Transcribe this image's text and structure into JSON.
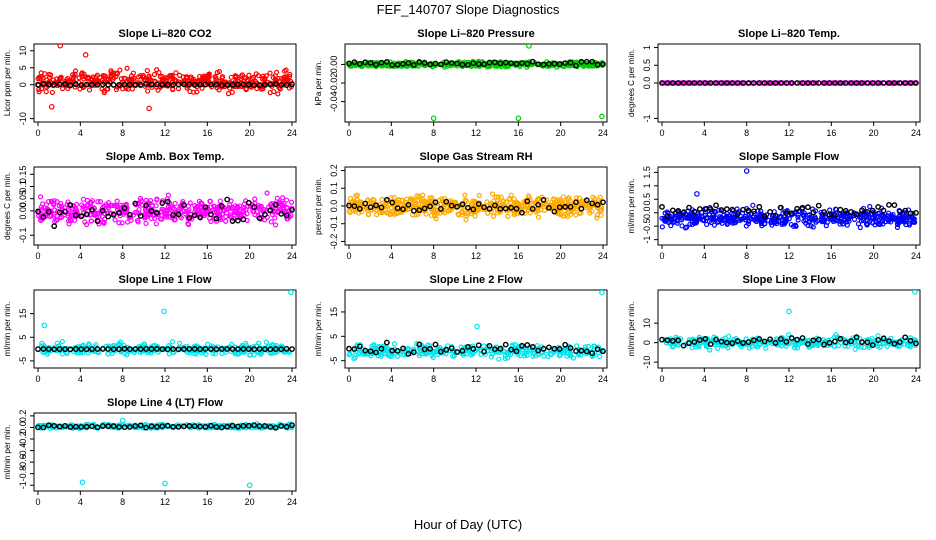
{
  "figure": {
    "title": "FEF_140707  Slope Diagnostics",
    "xlabel": "Hour of Day (UTC)"
  },
  "chart_data": [
    {
      "type": "scatter",
      "title": "Slope Li–820 CO2",
      "ylabel": "Licor ppm per min.",
      "xlim": [
        0,
        24
      ],
      "xticks": [
        0,
        4,
        8,
        12,
        16,
        20,
        24
      ],
      "ylim": [
        -11,
        12
      ],
      "yticks": [
        -10,
        0,
        5,
        10
      ],
      "series": [
        {
          "color": "#ff0000",
          "center": 1,
          "spread": 10,
          "n": 420
        },
        {
          "color": "#000000",
          "center": 0,
          "spread": 0.6,
          "n": 48
        }
      ],
      "outliers": [
        [
          2.1,
          11.5
        ],
        [
          4.5,
          8.8
        ],
        [
          1.3,
          -6.5
        ],
        [
          10.5,
          -7.0
        ]
      ]
    },
    {
      "type": "scatter",
      "title": "Slope Li–820 Pressure",
      "ylabel": "kPa per min.",
      "xlim": [
        0,
        24
      ],
      "xticks": [
        0,
        4,
        8,
        12,
        16,
        20,
        24
      ],
      "ylim": [
        -0.062,
        0.022
      ],
      "yticks": [
        -0.04,
        -0.02,
        0.0
      ],
      "series": [
        {
          "color": "#00cc00",
          "center": 0.0,
          "spread": 0.009,
          "n": 460
        },
        {
          "color": "#000000",
          "center": 0.001,
          "spread": 0.008,
          "n": 48
        }
      ],
      "outliers": [
        [
          8.0,
          -0.058
        ],
        [
          16.0,
          -0.058
        ],
        [
          23.9,
          -0.056
        ],
        [
          17.0,
          0.02
        ]
      ]
    },
    {
      "type": "scatter",
      "title": "Slope Li–820 Temp.",
      "ylabel": "degrees C per min.",
      "xlim": [
        0,
        24
      ],
      "xticks": [
        0,
        4,
        8,
        12,
        16,
        20,
        24
      ],
      "ylim": [
        -1.1,
        1.1
      ],
      "yticks": [
        -1.0,
        0.0,
        0.5,
        1.0
      ],
      "series": [
        {
          "color": "#ff00ff",
          "center": 0,
          "spread": 0.0,
          "n": 200
        },
        {
          "color": "#000000",
          "center": 0,
          "spread": 0.0,
          "n": 48
        }
      ],
      "outliers": []
    },
    {
      "type": "scatter",
      "title": "Slope Amb. Box Temp.",
      "ylabel": "degrees C per min.",
      "xlim": [
        0,
        24
      ],
      "xticks": [
        0,
        4,
        8,
        12,
        16,
        20,
        24
      ],
      "ylim": [
        -0.14,
        0.18
      ],
      "yticks": [
        -0.1,
        0.0,
        0.05,
        0.1,
        0.15
      ],
      "series": [
        {
          "color": "#ff00ff",
          "center": 0.0,
          "spread": 0.17,
          "n": 460
        },
        {
          "color": "#000000",
          "center": 0.0,
          "spread": 0.16,
          "n": 48
        }
      ],
      "outliers": []
    },
    {
      "type": "scatter",
      "title": "Slope Gas Stream RH",
      "ylabel": "percent per min.",
      "xlim": [
        0,
        24
      ],
      "xticks": [
        0,
        4,
        8,
        12,
        16,
        20,
        24
      ],
      "ylim": [
        -0.22,
        0.22
      ],
      "yticks": [
        -0.2,
        -0.1,
        0.0,
        0.1,
        0.2
      ],
      "series": [
        {
          "color": "#ffaa00",
          "center": 0.0,
          "spread": 0.2,
          "n": 520
        },
        {
          "color": "#000000",
          "center": 0.0,
          "spread": 0.12,
          "n": 48
        }
      ],
      "outliers": []
    },
    {
      "type": "scatter",
      "title": "Slope Sample Flow",
      "ylabel": "ml/min per min.",
      "xlim": [
        0,
        24
      ],
      "xticks": [
        0,
        4,
        8,
        12,
        16,
        20,
        24
      ],
      "ylim": [
        -1.2,
        1.7
      ],
      "yticks": [
        -1.0,
        -0.5,
        0.0,
        0.5,
        1.0,
        1.5
      ],
      "series": [
        {
          "color": "#0000ff",
          "center": -0.2,
          "spread": 1.1,
          "n": 480
        },
        {
          "color": "#000000",
          "center": 0.1,
          "spread": 0.7,
          "n": 48
        }
      ],
      "outliers": [
        [
          8.0,
          1.55
        ],
        [
          3.3,
          0.7
        ]
      ]
    },
    {
      "type": "scatter",
      "title": "Slope Line 1 Flow",
      "ylabel": "ml/min per min.",
      "xlim": [
        0,
        24
      ],
      "xticks": [
        0,
        4,
        8,
        12,
        16,
        20,
        24
      ],
      "ylim": [
        -8,
        25
      ],
      "yticks": [
        -5,
        5,
        15
      ],
      "series": [
        {
          "color": "#00e5ee",
          "center": 0,
          "spread": 8,
          "n": 300
        },
        {
          "color": "#000000",
          "center": 0,
          "spread": 0.3,
          "n": 48
        }
      ],
      "outliers": [
        [
          23.9,
          24
        ],
        [
          11.9,
          16
        ],
        [
          0.6,
          10
        ]
      ]
    },
    {
      "type": "scatter",
      "title": "Slope Line 2 Flow",
      "ylabel": "ml/min per min.",
      "xlim": [
        0,
        24
      ],
      "xticks": [
        0,
        4,
        8,
        12,
        16,
        20,
        24
      ],
      "ylim": [
        -8,
        24
      ],
      "yticks": [
        -5,
        5,
        15
      ],
      "series": [
        {
          "color": "#00e5ee",
          "center": -1,
          "spread": 9,
          "n": 300
        },
        {
          "color": "#000000",
          "center": 0,
          "spread": 7,
          "n": 48
        }
      ],
      "outliers": [
        [
          23.9,
          23
        ],
        [
          12.1,
          9
        ]
      ]
    },
    {
      "type": "scatter",
      "title": "Slope Line 3 Flow",
      "ylabel": "ml/min per min.",
      "xlim": [
        0,
        24
      ],
      "xticks": [
        0,
        4,
        8,
        12,
        16,
        20,
        24
      ],
      "ylim": [
        -13,
        27
      ],
      "yticks": [
        -10,
        0,
        10
      ],
      "series": [
        {
          "color": "#00e5ee",
          "center": 0,
          "spread": 10,
          "n": 300
        },
        {
          "color": "#000000",
          "center": 1,
          "spread": 7,
          "n": 48
        }
      ],
      "outliers": [
        [
          23.9,
          26
        ],
        [
          12.0,
          16
        ]
      ]
    },
    {
      "type": "scatter",
      "title": "Slope Line 4 (LT) Flow",
      "ylabel": "ml/min per min.",
      "xlim": [
        0,
        24
      ],
      "xticks": [
        0,
        4,
        8,
        12,
        16,
        20,
        24
      ],
      "ylim": [
        -1.1,
        0.25
      ],
      "yticks": [
        -1.0,
        -0.8,
        -0.6,
        -0.4,
        -0.2,
        0.0,
        0.2
      ],
      "series": [
        {
          "color": "#00e5ee",
          "center": 0.02,
          "spread": 0.12,
          "n": 300
        },
        {
          "color": "#000000",
          "center": 0.02,
          "spread": 0.08,
          "n": 48
        }
      ],
      "outliers": [
        [
          4.2,
          -0.95
        ],
        [
          12.0,
          -0.97
        ],
        [
          20.0,
          -1.0
        ],
        [
          8.0,
          0.12
        ]
      ]
    }
  ]
}
